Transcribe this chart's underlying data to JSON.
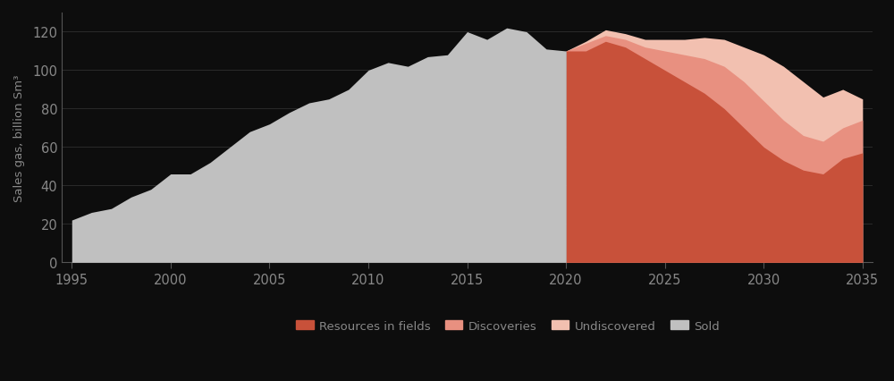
{
  "ylabel": "Sales gas, billion Sm³",
  "background_color": "#0d0d0d",
  "plot_bg_color": "#0d0d0d",
  "colors": {
    "sold": "#c0c0c0",
    "resources_in_fields": "#c8513a",
    "discoveries": "#e89080",
    "undiscovered": "#f2c0b0"
  },
  "xlim": [
    1994.5,
    2035.5
  ],
  "ylim": [
    0,
    130
  ],
  "yticks": [
    0,
    20,
    40,
    60,
    80,
    100,
    120
  ],
  "xticks": [
    1995,
    2000,
    2005,
    2010,
    2015,
    2020,
    2025,
    2030,
    2035
  ],
  "legend_labels": [
    "Resources in fields",
    "Discoveries",
    "Undiscovered",
    "Sold"
  ],
  "sold_years": [
    1995,
    1996,
    1997,
    1998,
    1999,
    2000,
    2001,
    2002,
    2003,
    2004,
    2005,
    2006,
    2007,
    2008,
    2009,
    2010,
    2011,
    2012,
    2013,
    2014,
    2015,
    2016,
    2017,
    2018,
    2019,
    2020
  ],
  "sold_values": [
    22,
    26,
    28,
    34,
    38,
    46,
    46,
    52,
    60,
    68,
    72,
    78,
    83,
    85,
    90,
    100,
    104,
    102,
    107,
    108,
    120,
    116,
    122,
    120,
    111,
    110
  ],
  "resources_years": [
    2020,
    2021,
    2022,
    2023,
    2024,
    2025,
    2026,
    2027,
    2028,
    2029,
    2030,
    2031,
    2032,
    2033,
    2034,
    2035
  ],
  "resources_values": [
    110,
    110,
    115,
    112,
    106,
    100,
    94,
    88,
    80,
    70,
    60,
    53,
    48,
    46,
    54,
    57
  ],
  "discoveries_values": [
    110,
    114,
    118,
    116,
    112,
    110,
    108,
    106,
    102,
    94,
    84,
    74,
    66,
    63,
    70,
    74
  ],
  "undiscovered_values": [
    110,
    115,
    121,
    119,
    116,
    116,
    116,
    117,
    116,
    112,
    108,
    102,
    94,
    86,
    90,
    85
  ]
}
